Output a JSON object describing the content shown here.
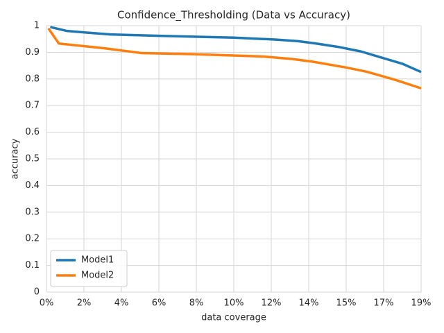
{
  "chart_data": {
    "type": "line",
    "title": "Confidence_Thresholding (Data vs Accuracy)",
    "xlabel": "data coverage",
    "ylabel": "accuracy",
    "xlim": [
      0,
      10
    ],
    "xticks": [
      {
        "value": 0,
        "label": "0%"
      },
      {
        "value": 1,
        "label": "2%"
      },
      {
        "value": 2,
        "label": "4%"
      },
      {
        "value": 3,
        "label": "6%"
      },
      {
        "value": 4,
        "label": "8%"
      },
      {
        "value": 5,
        "label": "10%"
      },
      {
        "value": 6,
        "label": "12%"
      },
      {
        "value": 7,
        "label": "14%"
      },
      {
        "value": 8,
        "label": "15%"
      },
      {
        "value": 9,
        "label": "17%"
      },
      {
        "value": 10,
        "label": "19%"
      }
    ],
    "ylim": [
      0,
      1
    ],
    "yticks": [
      0.0,
      0.1,
      0.2,
      0.3,
      0.4,
      0.5,
      0.6,
      0.7,
      0.8,
      0.9,
      1.0
    ],
    "grid": true,
    "legend": "lower left",
    "series": [
      {
        "name": "Model1",
        "color": "#1f77b4",
        "x": [
          0.1,
          0.55,
          1.7,
          3,
          5,
          6.1,
          6.7,
          7.2,
          7.8,
          8.4,
          8.9,
          9.5,
          10
        ],
        "values": [
          0.995,
          0.98,
          0.967,
          0.962,
          0.955,
          0.948,
          0.942,
          0.933,
          0.92,
          0.903,
          0.882,
          0.857,
          0.826
        ]
      },
      {
        "name": "Model2",
        "color": "#ff7f0e",
        "x": [
          0.05,
          0.33,
          1.55,
          2.55,
          3.95,
          5.8,
          6.55,
          7.1,
          8,
          8.55,
          9.3,
          10
        ],
        "values": [
          0.99,
          0.933,
          0.915,
          0.897,
          0.893,
          0.884,
          0.875,
          0.865,
          0.843,
          0.827,
          0.797,
          0.765
        ]
      }
    ]
  }
}
